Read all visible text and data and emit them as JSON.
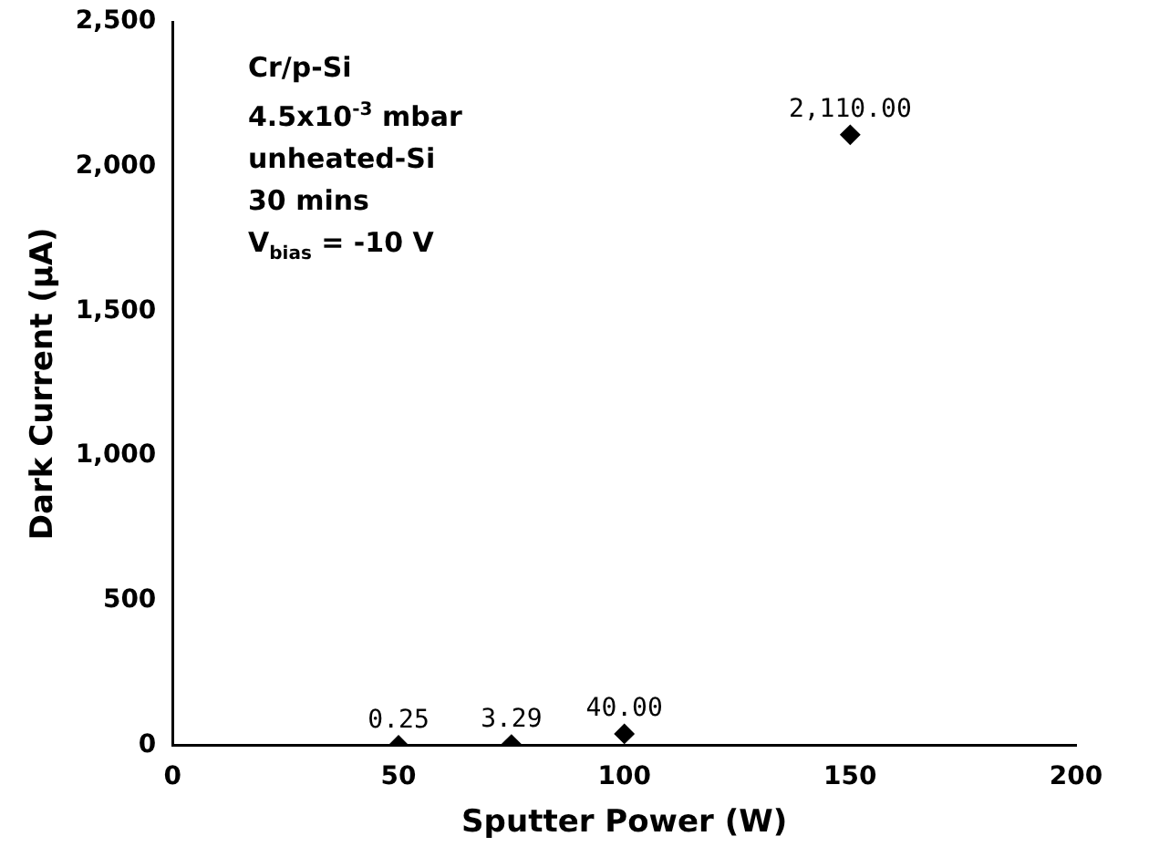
{
  "chart_data": {
    "type": "scatter",
    "xlabel": "Sputter Power (W)",
    "ylabel": "Dark Current (μA)",
    "x": [
      50,
      75,
      100,
      150
    ],
    "series": [
      {
        "color": "#000000",
        "values": [
          0.25,
          3.29,
          40,
          2110
        ],
        "value_labels": [
          "0.25",
          "3.29",
          "40.00",
          "2,110.00"
        ]
      }
    ],
    "xlim": [
      0,
      200
    ],
    "xticks": [
      0,
      50,
      100,
      150,
      200
    ],
    "ylim": [
      0,
      2500
    ],
    "yticks": [
      0,
      500,
      {
        "value": 1000,
        "label": "1,000"
      },
      {
        "value": 1500,
        "label": "1,500"
      },
      {
        "value": 2000,
        "label": "2,000"
      },
      {
        "value": 2500,
        "label": "2,500"
      }
    ],
    "grid": false,
    "legend": false,
    "marker": "diamond",
    "annotations": [
      "Cr/p-Si",
      "4.5x10$^{-3}$ mbar",
      "unheated-Si",
      "30 mins",
      "V$_{bias}$ = -10 V"
    ]
  }
}
